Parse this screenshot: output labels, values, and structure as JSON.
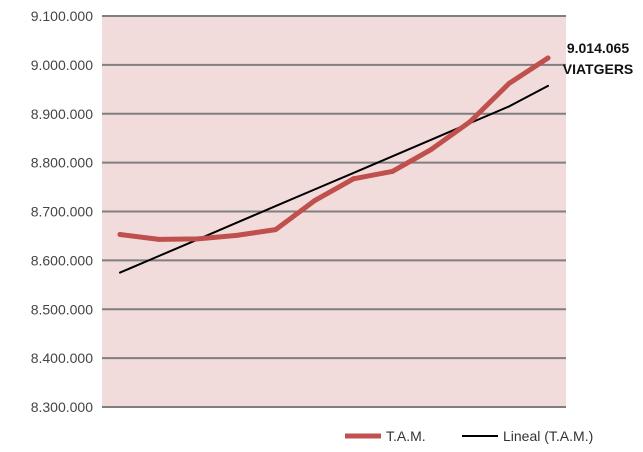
{
  "chart_data": {
    "type": "line",
    "title": "",
    "xlabel": "",
    "ylabel": "",
    "ylim": [
      8300000,
      9100000
    ],
    "y_ticks": [
      {
        "value": 9100000,
        "label": "9.100.000"
      },
      {
        "value": 9000000,
        "label": "9.000.000"
      },
      {
        "value": 8900000,
        "label": "8.900.000"
      },
      {
        "value": 8800000,
        "label": "8.800.000"
      },
      {
        "value": 8700000,
        "label": "8.700.000"
      },
      {
        "value": 8600000,
        "label": "8.600.000"
      },
      {
        "value": 8500000,
        "label": "8.500.000"
      },
      {
        "value": 8400000,
        "label": "8.400.000"
      },
      {
        "value": 8300000,
        "label": "8.300.000"
      }
    ],
    "grid": true,
    "legend_position": "bottom-right",
    "series": [
      {
        "name": "T.A.M.",
        "color": "#c0504d",
        "values": [
          8653000,
          8643000,
          8644000,
          8651000,
          8663000,
          8722000,
          8767000,
          8782000,
          8827000,
          8884000,
          8962000,
          9014065
        ]
      },
      {
        "name": "Lineal (T.A.M.)",
        "color": "#000000",
        "trendline": true,
        "values": [
          8575000,
          8609000,
          8643000,
          8677000,
          8711000,
          8745000,
          8779000,
          8813000,
          8847000,
          8881000,
          8915000,
          8957000
        ]
      }
    ],
    "annotations": [
      {
        "line1": "9.014.065",
        "line2": "VIATGERS",
        "series": "T.A.M.",
        "point_index": 11
      }
    ],
    "plot_background": "#f2dcdb",
    "grid_color": "#7f7f7f"
  }
}
